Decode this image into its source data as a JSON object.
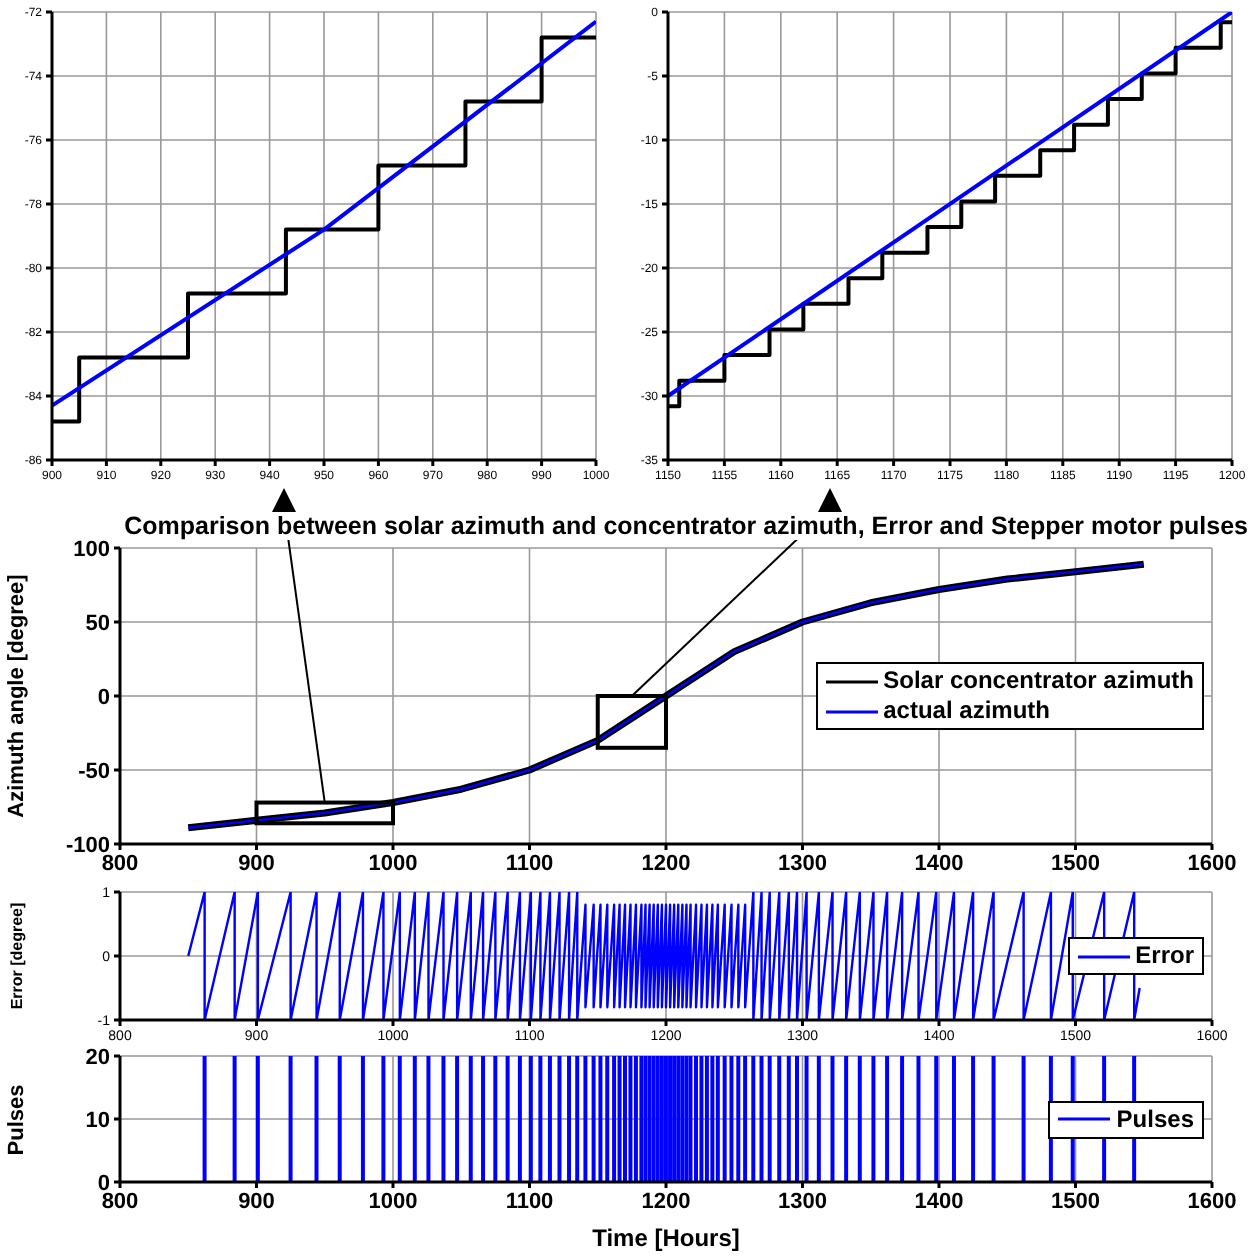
{
  "chart_data": [
    {
      "type": "line",
      "xlim": [
        900,
        1000
      ],
      "xticks": [
        900,
        910,
        920,
        930,
        940,
        950,
        960,
        970,
        980,
        990,
        1000
      ],
      "ylim": [
        -86,
        -72
      ],
      "yticks": [
        -86,
        -84,
        -82,
        -80,
        -78,
        -76,
        -74,
        -72
      ],
      "grid": true,
      "series": [
        {
          "type": "step",
          "color": "#000000",
          "x": [
            900,
            905,
            925,
            943,
            960,
            976,
            990,
            1000
          ],
          "values": [
            -84.8,
            -82.8,
            -80.8,
            -78.8,
            -76.8,
            -74.8,
            -72.8,
            -72.8
          ]
        },
        {
          "color": "#0000ff",
          "x": [
            900,
            950,
            1000
          ],
          "values": [
            -84.3,
            -78.8,
            -72.3
          ]
        }
      ]
    },
    {
      "type": "line",
      "xlim": [
        1150,
        1200
      ],
      "xticks": [
        1150,
        1155,
        1160,
        1165,
        1170,
        1175,
        1180,
        1185,
        1190,
        1195,
        1200
      ],
      "ylim": [
        -35,
        0
      ],
      "yticks": [
        -35,
        -30,
        -25,
        -20,
        -15,
        -10,
        -5,
        0
      ],
      "grid": true,
      "series": [
        {
          "type": "step",
          "color": "#000000",
          "x": [
            1150,
            1151,
            1155,
            1159,
            1162,
            1166,
            1169,
            1173,
            1176,
            1179,
            1183,
            1186,
            1189,
            1192,
            1195,
            1199,
            1200
          ],
          "values": [
            -30.8,
            -28.8,
            -26.8,
            -24.8,
            -22.8,
            -20.8,
            -18.8,
            -16.8,
            -14.8,
            -12.8,
            -10.8,
            -8.8,
            -6.8,
            -4.8,
            -2.8,
            -0.8,
            -0.8
          ]
        },
        {
          "color": "#0000ff",
          "x": [
            1150,
            1200
          ],
          "values": [
            -30,
            0
          ]
        }
      ]
    },
    {
      "type": "line",
      "title": "Comparison between solar azimuth and concentrator azimuth, Error and Stepper motor pulses",
      "ylabel": "Azimuth angle [degree]",
      "xlim": [
        800,
        1600
      ],
      "xticks": [
        800,
        900,
        1000,
        1100,
        1200,
        1300,
        1400,
        1500,
        1600
      ],
      "ylim": [
        -100,
        100
      ],
      "yticks": [
        -100,
        -50,
        0,
        50,
        100
      ],
      "grid": true,
      "legend": "right",
      "series": [
        {
          "name": "Solar concentrator azimuth",
          "color": "#000000",
          "x": [
            850,
            900,
            950,
            1000,
            1050,
            1100,
            1150,
            1200,
            1250,
            1300,
            1350,
            1400,
            1450,
            1500,
            1550
          ],
          "values": [
            -89,
            -84,
            -79,
            -72,
            -63,
            -50,
            -30,
            0,
            30,
            50,
            63,
            72,
            79,
            84,
            89
          ]
        },
        {
          "name": "actual azimuth",
          "color": "#0000ff",
          "x": [
            850,
            900,
            950,
            1000,
            1050,
            1100,
            1150,
            1200,
            1250,
            1300,
            1350,
            1400,
            1450,
            1500,
            1550
          ],
          "values": [
            -89,
            -84,
            -79,
            -72,
            -63,
            -50,
            -30,
            0,
            30,
            50,
            63,
            72,
            79,
            84,
            89
          ]
        }
      ]
    },
    {
      "type": "line",
      "ylabel": "Error [degree]",
      "xlim": [
        800,
        1600
      ],
      "xticks": [
        800,
        900,
        1000,
        1100,
        1200,
        1300,
        1400,
        1500,
        1600
      ],
      "ylim": [
        -1,
        1
      ],
      "yticks": [
        -1,
        0,
        1
      ],
      "grid": true,
      "legend": "right",
      "series": [
        {
          "name": "Error",
          "color": "#0000ff",
          "x": [
            850,
            862,
            862,
            884,
            884,
            901,
            901,
            925,
            925,
            944,
            944,
            961,
            961,
            978,
            978,
            993,
            993,
            1005,
            1005,
            1016,
            1016,
            1026,
            1026,
            1037,
            1037,
            1047,
            1047,
            1057,
            1057,
            1066,
            1066,
            1075,
            1075,
            1084,
            1084,
            1093,
            1093,
            1101,
            1101,
            1108,
            1108,
            1115,
            1115,
            1122,
            1122,
            1129,
            1129,
            1135,
            1135,
            1141,
            1141,
            1147,
            1147,
            1152,
            1152,
            1157,
            1157,
            1162,
            1162,
            1166,
            1166,
            1170,
            1170,
            1174,
            1174,
            1178,
            1178,
            1182,
            1182,
            1185,
            1185,
            1188,
            1188,
            1191,
            1191,
            1194,
            1194,
            1197,
            1197,
            1200,
            1200,
            1203,
            1203,
            1206,
            1206,
            1209,
            1209,
            1212,
            1212,
            1215,
            1215,
            1218,
            1218,
            1222,
            1222,
            1226,
            1226,
            1230,
            1230,
            1234,
            1234,
            1238,
            1238,
            1243,
            1243,
            1248,
            1248,
            1253,
            1253,
            1258,
            1258,
            1264,
            1264,
            1270,
            1270,
            1276,
            1276,
            1283,
            1283,
            1290,
            1290,
            1296,
            1296,
            1303,
            1303,
            1312,
            1312,
            1322,
            1322,
            1332,
            1332,
            1342,
            1342,
            1352,
            1352,
            1362,
            1362,
            1373,
            1373,
            1385,
            1385,
            1398,
            1398,
            1411,
            1411,
            1425,
            1425,
            1440,
            1440,
            1462,
            1462,
            1482,
            1482,
            1498,
            1498,
            1521,
            1521,
            1543,
            1543,
            1547
          ],
          "values": [
            0,
            1,
            -1,
            1,
            -1,
            1,
            -1,
            1,
            -1,
            1,
            -1,
            1,
            -1,
            1,
            -1,
            1,
            -1,
            1,
            -1,
            1,
            -1,
            1,
            -1,
            1,
            -1,
            1,
            -1,
            1,
            -1,
            1,
            -1,
            1,
            -1,
            1,
            -1,
            1,
            -1,
            1,
            -1,
            1,
            -1,
            1,
            -1,
            1,
            -1,
            1,
            -1,
            1,
            -1,
            0.8,
            -0.8,
            0.8,
            -0.8,
            0.8,
            -0.8,
            0.8,
            -0.8,
            0.8,
            -0.8,
            0.8,
            -0.8,
            0.8,
            -0.8,
            0.8,
            -0.8,
            0.8,
            -0.8,
            0.8,
            -0.8,
            0.8,
            -0.8,
            0.8,
            -0.8,
            0.8,
            -0.8,
            0.8,
            -0.8,
            0.8,
            -0.8,
            0.8,
            -0.8,
            0.8,
            -0.8,
            0.8,
            -0.8,
            0.8,
            -0.8,
            0.8,
            -0.8,
            0.8,
            -0.8,
            0.8,
            -0.8,
            0.8,
            -0.8,
            0.8,
            -0.8,
            0.8,
            -0.8,
            0.8,
            -0.8,
            0.8,
            -0.8,
            0.8,
            -0.8,
            0.8,
            -0.8,
            0.8,
            -0.8,
            0.8,
            -0.8,
            1,
            -1,
            1,
            -1,
            1,
            -1,
            1,
            -1,
            1,
            -1,
            1,
            -1,
            1,
            -1,
            1,
            -1,
            1,
            -1,
            1,
            -1,
            1,
            -1,
            1,
            -1,
            1,
            -1,
            1,
            -1,
            1,
            -1,
            1,
            -1,
            1,
            -1,
            1,
            -1,
            1,
            -1,
            1,
            -1,
            1,
            -1,
            1,
            -1,
            1,
            -1,
            1,
            -1,
            -0.5
          ]
        }
      ]
    },
    {
      "type": "bar",
      "xlabel": "Time [Hours]",
      "ylabel": "Pulses",
      "xlim": [
        800,
        1600
      ],
      "xticks": [
        800,
        900,
        1000,
        1100,
        1200,
        1300,
        1400,
        1500,
        1600
      ],
      "ylim": [
        0,
        20
      ],
      "yticks": [
        0,
        10,
        20
      ],
      "grid": true,
      "legend": "right",
      "series": [
        {
          "name": "Pulses",
          "color": "#0000ff",
          "x": [
            862,
            884,
            901,
            925,
            944,
            961,
            978,
            993,
            1005,
            1016,
            1026,
            1037,
            1047,
            1057,
            1066,
            1075,
            1084,
            1093,
            1101,
            1108,
            1115,
            1122,
            1129,
            1135,
            1141,
            1147,
            1152,
            1157,
            1162,
            1166,
            1170,
            1174,
            1178,
            1182,
            1185,
            1188,
            1191,
            1194,
            1197,
            1200,
            1203,
            1206,
            1209,
            1212,
            1215,
            1218,
            1222,
            1226,
            1230,
            1234,
            1238,
            1243,
            1248,
            1253,
            1258,
            1264,
            1270,
            1276,
            1283,
            1290,
            1296,
            1303,
            1312,
            1322,
            1332,
            1342,
            1352,
            1362,
            1373,
            1385,
            1398,
            1411,
            1425,
            1440,
            1462,
            1482,
            1498,
            1521,
            1543
          ],
          "values": [
            20,
            20,
            20,
            20,
            20,
            20,
            20,
            20,
            20,
            20,
            20,
            20,
            20,
            20,
            20,
            20,
            20,
            20,
            20,
            20,
            20,
            20,
            20,
            20,
            20,
            20,
            20,
            20,
            20,
            20,
            20,
            20,
            20,
            20,
            20,
            20,
            20,
            20,
            20,
            20,
            20,
            20,
            20,
            20,
            20,
            20,
            20,
            20,
            20,
            20,
            20,
            20,
            20,
            20,
            20,
            20,
            20,
            20,
            20,
            20,
            20,
            20,
            20,
            20,
            20,
            20,
            20,
            20,
            20,
            20,
            20,
            20,
            20,
            20,
            20,
            20,
            20,
            20,
            20
          ]
        }
      ]
    }
  ]
}
